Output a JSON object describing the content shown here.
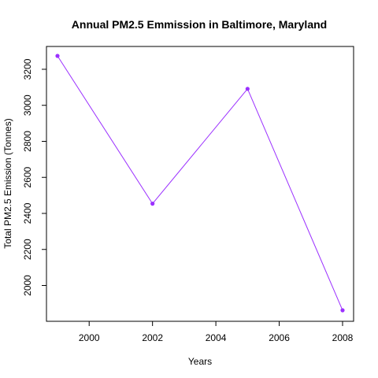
{
  "chart_data": {
    "type": "line",
    "title": "Annual PM2.5 Emmission in Baltimore, Maryland",
    "xlabel": "Years",
    "ylabel": "Total PM2.5 Emission (Tonnes)",
    "x": [
      1999,
      2002,
      2005,
      2008
    ],
    "series": [
      {
        "values": [
          3274.18,
          2453.92,
          3091.35,
          1862.28
        ]
      }
    ],
    "xlim": [
      1999,
      2008
    ],
    "ylim": [
      1862.28,
      3274.18
    ],
    "xticks": [
      2000,
      2002,
      2004,
      2006,
      2008
    ],
    "yticks": [
      2000,
      2200,
      2400,
      2600,
      2800,
      3000,
      3200
    ],
    "xtick_labels": [
      "2000",
      "2002",
      "2004",
      "2006",
      "2008"
    ],
    "ytick_labels": [
      "2000",
      "2200",
      "2400",
      "2600",
      "2800",
      "3000",
      "3200"
    ],
    "grid": false,
    "legend": "none",
    "colors": {
      "line": "#9b30ff",
      "point": "#9b30ff",
      "axis": "#000000"
    }
  }
}
